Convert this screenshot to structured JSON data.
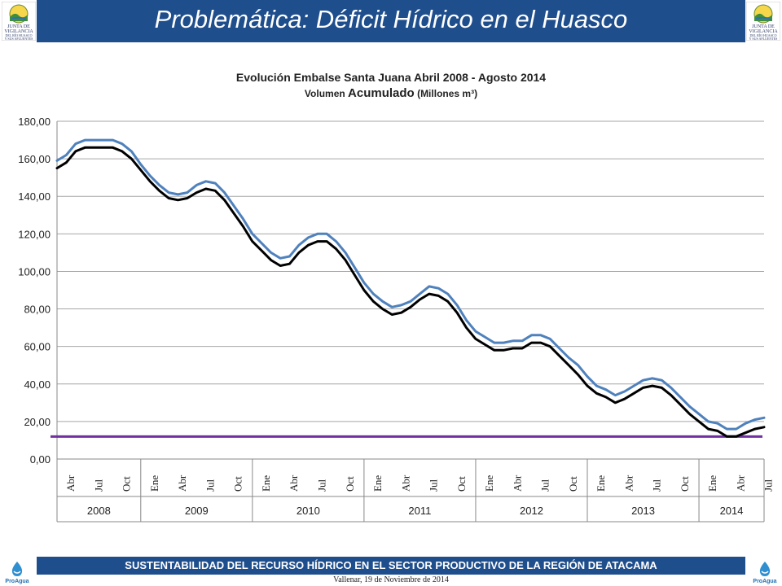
{
  "header": {
    "title": "Problemática: Déficit Hídrico en el Huasco",
    "background": "#1f4e8c",
    "logo_text": [
      "JUNTA DE",
      "VIGILANCIA",
      "DEL RÍO HUASCO",
      "Y SUS AFLUENTES"
    ]
  },
  "footer": {
    "title": "SUSTENTABILIDAD DEL RECURSO HÍDRICO EN EL SECTOR PRODUCTIVO DE LA REGIÓN DE ATACAMA",
    "date": "Vallenar, 19 de Noviembre de 2014",
    "brand": "ProAgua"
  },
  "chart_data": {
    "type": "line",
    "title": "Evolución Embalse Santa Juana Abril 2008 - Agosto 2014",
    "subtitle_prefix": "Volumen ",
    "subtitle_big": "Acumulado",
    "subtitle_suffix": " (Millones m³)",
    "ylim": [
      0,
      180
    ],
    "yticks": [
      "0,00",
      "20,00",
      "40,00",
      "60,00",
      "80,00",
      "100,00",
      "120,00",
      "140,00",
      "160,00",
      "180,00"
    ],
    "ytick_values": [
      0,
      20,
      40,
      60,
      80,
      100,
      120,
      140,
      160,
      180
    ],
    "grid": true,
    "month_labels": [
      "Abr",
      "Jul",
      "Oct",
      "Ene",
      "Abr",
      "Jul",
      "Oct",
      "Ene",
      "Abr",
      "Jul",
      "Oct",
      "Ene",
      "Abr",
      "Jul",
      "Oct",
      "Ene",
      "Abr",
      "Jul",
      "Oct",
      "Ene",
      "Abr",
      "Jul",
      "Oct",
      "Ene",
      "Abr",
      "Jul"
    ],
    "years": [
      {
        "label": "2008",
        "months": 9
      },
      {
        "label": "2009",
        "months": 12
      },
      {
        "label": "2010",
        "months": 12
      },
      {
        "label": "2011",
        "months": 12
      },
      {
        "label": "2012",
        "months": 12
      },
      {
        "label": "2013",
        "months": 12
      },
      {
        "label": "2014",
        "months": 7
      }
    ],
    "reference_line": {
      "value": 12,
      "color": "#7030a0"
    },
    "series": [
      {
        "color": "#4f81bd",
        "values": [
          159,
          162,
          168,
          170,
          170,
          170,
          170,
          168,
          164,
          157,
          151,
          146,
          142,
          141,
          142,
          146,
          148,
          147,
          142,
          135,
          128,
          120,
          115,
          110,
          107,
          108,
          114,
          118,
          120,
          120,
          116,
          110,
          102,
          94,
          88,
          84,
          81,
          82,
          84,
          88,
          92,
          91,
          88,
          82,
          74,
          68,
          65,
          62,
          62,
          63,
          63,
          66,
          66,
          64,
          59,
          54,
          50,
          44,
          39,
          37,
          34,
          36,
          39,
          42,
          43,
          42,
          38,
          33,
          28,
          24,
          20,
          19,
          16,
          16,
          19,
          21,
          22
        ]
      },
      {
        "color": "#000000",
        "values": [
          155,
          158,
          164,
          166,
          166,
          166,
          166,
          164,
          160,
          154,
          148,
          143,
          139,
          138,
          139,
          142,
          144,
          143,
          138,
          131,
          124,
          116,
          111,
          106,
          103,
          104,
          110,
          114,
          116,
          116,
          112,
          106,
          98,
          90,
          84,
          80,
          77,
          78,
          81,
          85,
          88,
          87,
          84,
          78,
          70,
          64,
          61,
          58,
          58,
          59,
          59,
          62,
          62,
          60,
          55,
          50,
          45,
          39,
          35,
          33,
          30,
          32,
          35,
          38,
          39,
          38,
          34,
          29,
          24,
          20,
          16,
          15,
          12,
          12,
          14,
          16,
          17
        ]
      }
    ]
  }
}
